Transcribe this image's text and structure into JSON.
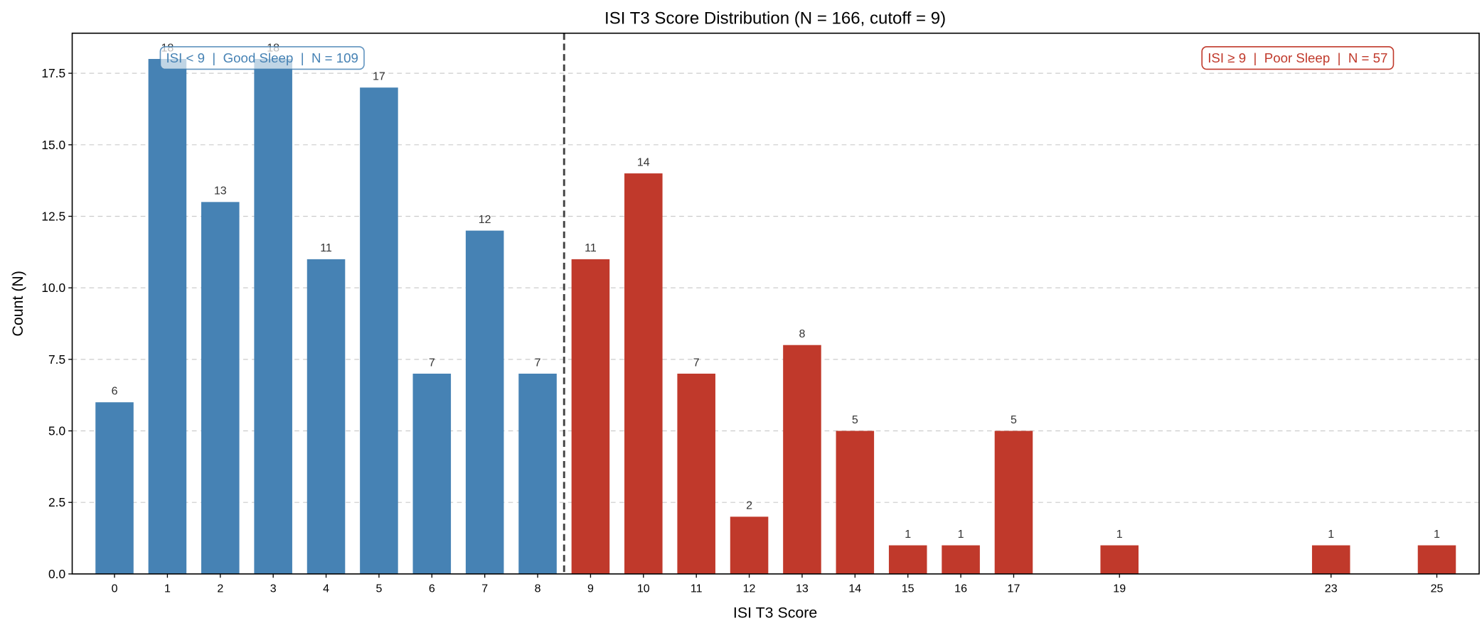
{
  "chart_data": {
    "type": "bar",
    "title": "ISI T3 Score Distribution (N = 166, cutoff = 9)",
    "xlabel": "ISI T3 Score",
    "ylabel": "Count (N)",
    "ylim": [
      0,
      18.9
    ],
    "xlim": [
      -0.8,
      25.8
    ],
    "cutoff": 9,
    "grid": "y-dashed",
    "yticks": [
      "0.0",
      "2.5",
      "5.0",
      "7.5",
      "10.0",
      "12.5",
      "15.0",
      "17.5"
    ],
    "series": [
      {
        "name": "Good Sleep",
        "color": "#4682b4",
        "x": [
          0,
          1,
          2,
          3,
          4,
          5,
          6,
          7,
          8
        ],
        "values": [
          6,
          18,
          13,
          18,
          11,
          17,
          7,
          12,
          7
        ]
      },
      {
        "name": "Poor Sleep",
        "color": "#c0392b",
        "x": [
          9,
          10,
          11,
          12,
          13,
          14,
          15,
          16,
          17,
          19,
          23,
          25
        ],
        "values": [
          11,
          14,
          7,
          2,
          8,
          5,
          1,
          1,
          5,
          1,
          1,
          1
        ]
      }
    ],
    "annotations": {
      "good": "ISI < 9  |  Good Sleep  |  N = 109",
      "poor": "ISI ≥ 9  |  Poor Sleep  |  N = 57"
    }
  }
}
